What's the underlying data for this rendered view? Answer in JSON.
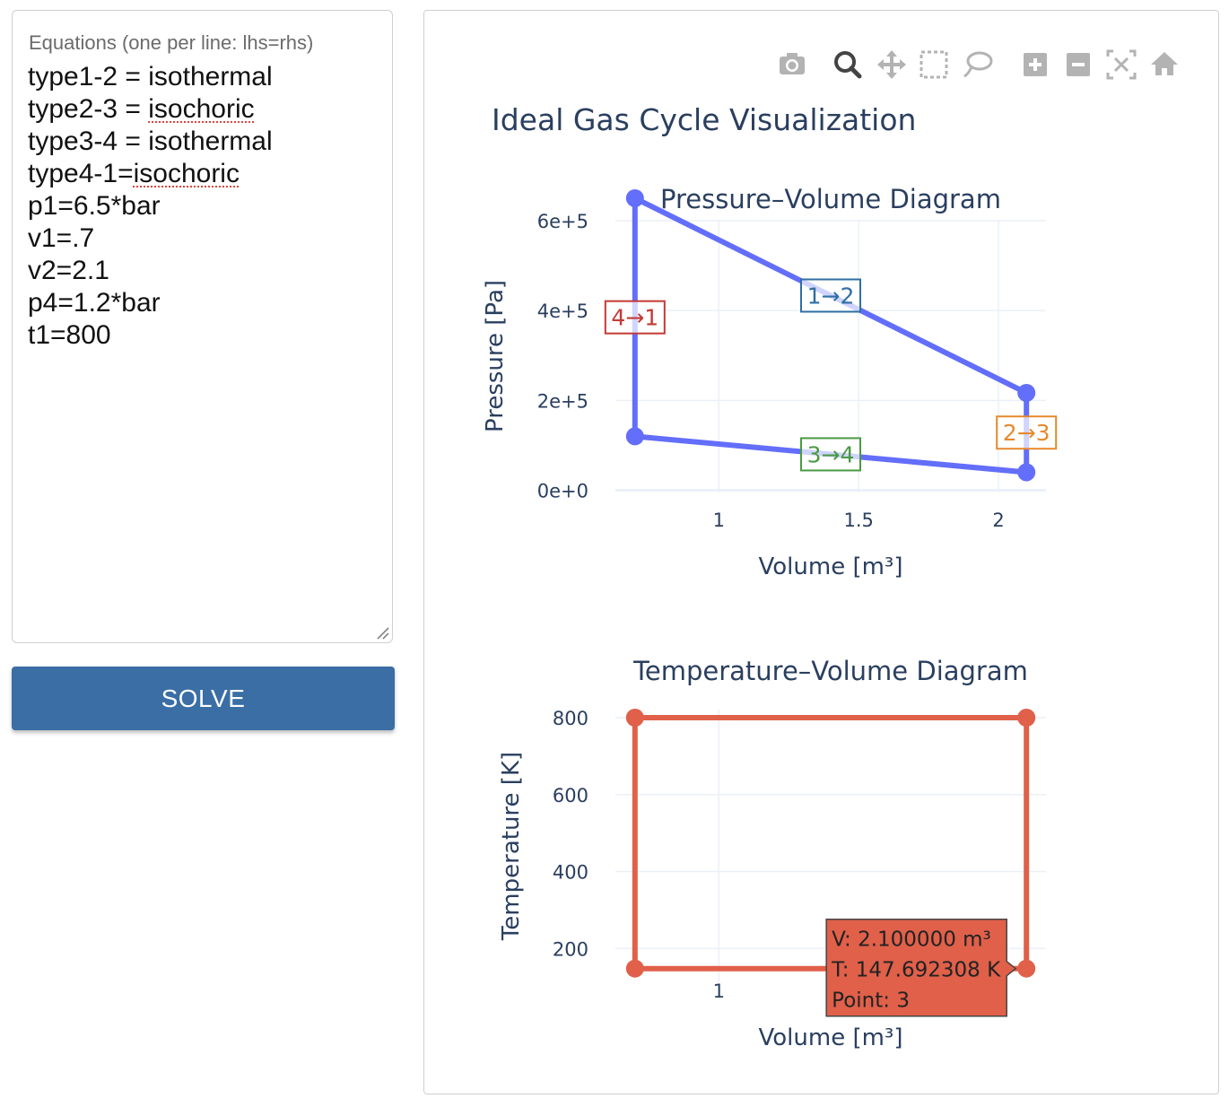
{
  "editor": {
    "label": "Equations (one per line: lhs=rhs)",
    "lines": [
      {
        "pre": "type1-2 = ",
        "word": "isothermal",
        "spell": false
      },
      {
        "pre": "type2-3 = ",
        "word": "isochoric",
        "spell": true
      },
      {
        "pre": "type3-4 = ",
        "word": "isothermal",
        "spell": false
      },
      {
        "pre": "type4-1=",
        "word": "isochoric",
        "spell": true
      },
      {
        "pre": "p1=6.5*bar",
        "word": "",
        "spell": false
      },
      {
        "pre": "v1=.7",
        "word": "",
        "spell": false
      },
      {
        "pre": "v2=2.1",
        "word": "",
        "spell": false
      },
      {
        "pre": "p4=1.2*bar",
        "word": "",
        "spell": false
      },
      {
        "pre": "t1=800",
        "word": "",
        "spell": false
      }
    ]
  },
  "solve_button": {
    "label": "SOLVE"
  },
  "modebar": {
    "icons": [
      "camera-icon",
      "zoom-icon",
      "pan-icon",
      "box-select-icon",
      "lasso-select-icon",
      "zoom-in-icon",
      "zoom-out-icon",
      "autoscale-icon",
      "reset-axes-icon"
    ]
  },
  "figure": {
    "title": "Ideal Gas Cycle Visualization"
  },
  "colors": {
    "pv_line": "#636efa",
    "tv_line": "#e0604a",
    "label_1_2": "#2f6fa5",
    "label_2_3": "#e68a2e",
    "label_3_4": "#4a9a43",
    "label_4_1": "#c23a36",
    "grid": "#ebf0f8",
    "text": "#2a3f5f"
  },
  "chart_data": [
    {
      "type": "line",
      "title": "Pressure–Volume Diagram",
      "xlabel": "Volume [m³]",
      "ylabel": "Pressure [Pa]",
      "x_ticks": [
        "1",
        "1.5",
        "2"
      ],
      "y_ticks": [
        "0e+0",
        "2e+5",
        "4e+5",
        "6e+5"
      ],
      "x_tick_values": [
        1,
        1.5,
        2
      ],
      "y_tick_values": [
        0,
        200000,
        400000,
        600000
      ],
      "xlim": [
        0.63,
        2.17
      ],
      "ylim": [
        -5000,
        602000
      ],
      "points": [
        {
          "point": 1,
          "v": 0.7,
          "p": 650000
        },
        {
          "point": 2,
          "v": 2.1,
          "p": 216667
        },
        {
          "point": 3,
          "v": 2.1,
          "p": 40000
        },
        {
          "point": 4,
          "v": 0.7,
          "p": 120000
        }
      ],
      "process_labels": [
        {
          "text": "1→2",
          "v": 1.4,
          "p": 433333,
          "color_key": "label_1_2"
        },
        {
          "text": "2→3",
          "v": 2.1,
          "p": 128333,
          "color_key": "label_2_3"
        },
        {
          "text": "3→4",
          "v": 1.4,
          "p": 80000,
          "color_key": "label_3_4"
        },
        {
          "text": "4→1",
          "v": 0.7,
          "p": 385000,
          "color_key": "label_4_1"
        }
      ],
      "grid": true
    },
    {
      "type": "line",
      "title": "Temperature–Volume Diagram",
      "xlabel": "Volume [m³]",
      "ylabel": "Temperature [K]",
      "x_ticks": [
        "1"
      ],
      "y_ticks": [
        "200",
        "400",
        "600",
        "800"
      ],
      "x_tick_values": [
        1
      ],
      "y_tick_values": [
        200,
        400,
        600,
        800
      ],
      "xlim": [
        0.63,
        2.17
      ],
      "ylim": [
        112,
        821
      ],
      "points": [
        {
          "point": 1,
          "v": 0.7,
          "t": 800
        },
        {
          "point": 2,
          "v": 2.1,
          "t": 800
        },
        {
          "point": 3,
          "v": 2.1,
          "t": 147.692308
        },
        {
          "point": 4,
          "v": 0.7,
          "t": 147.692308
        }
      ],
      "grid": true,
      "tooltip": {
        "lines": [
          "V: 2.100000 m³",
          "T: 147.692308 K",
          "Point: 3"
        ],
        "point": 3
      }
    }
  ]
}
